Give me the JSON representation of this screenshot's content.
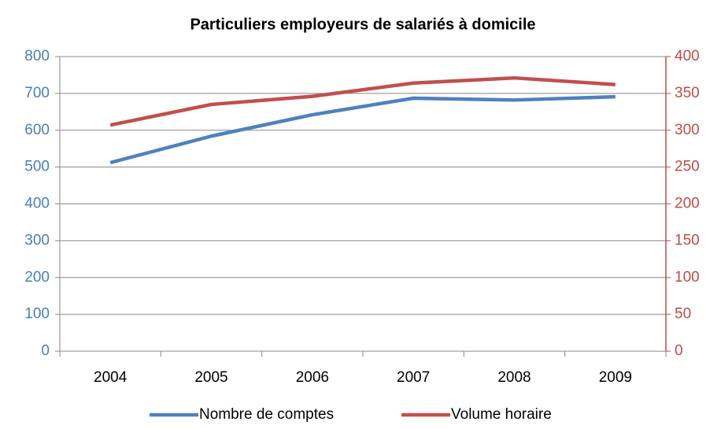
{
  "chart_data": {
    "type": "line",
    "title": "Particuliers employeurs de salariés à domicile",
    "categories": [
      "2004",
      "2005",
      "2006",
      "2007",
      "2008",
      "2009"
    ],
    "series": [
      {
        "name": "Nombre de comptes",
        "color": "#4f81bd",
        "values": [
          512,
          584,
          642,
          687,
          682,
          691
        ]
      },
      {
        "name": "Volume horaire",
        "color": "#c0504d",
        "axis": "y2",
        "values": [
          307,
          335,
          346,
          364,
          371,
          362
        ]
      }
    ],
    "ylim": [
      0,
      800
    ],
    "yticks": [
      0,
      100,
      200,
      300,
      400,
      500,
      600,
      700,
      800
    ],
    "ytick_color": "#4a7ebb",
    "y2lim": [
      0,
      400
    ],
    "y2ticks": [
      0,
      50,
      100,
      150,
      200,
      250,
      300,
      350,
      400
    ],
    "y2tick_color": "#be4b48",
    "grid": true,
    "legend": "bottom"
  }
}
